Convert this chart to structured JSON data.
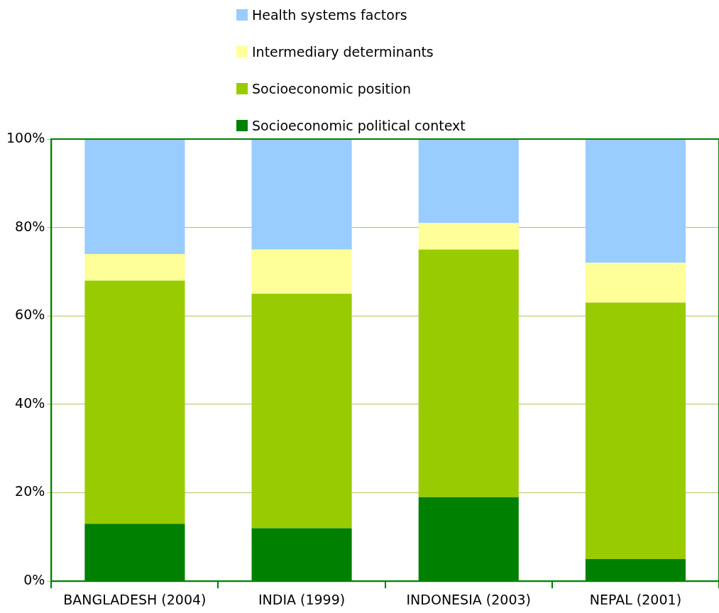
{
  "chart_data": {
    "type": "bar",
    "stacked": true,
    "categories": [
      "BANGLADESH (2004)",
      "INDIA (1999)",
      "INDONESIA (2003)",
      "NEPAL (2001)"
    ],
    "series": [
      {
        "name": "Socioeconomic political context",
        "color": "#008000",
        "values": [
          13,
          12,
          19,
          5
        ]
      },
      {
        "name": "Socioeconomic position",
        "color": "#99cc00",
        "values": [
          55,
          53,
          56,
          58
        ]
      },
      {
        "name": "Intermediary determinants",
        "color": "#ffff99",
        "values": [
          6,
          10,
          6,
          9
        ]
      },
      {
        "name": "Health systems factors",
        "color": "#99ccff",
        "values": [
          26,
          25,
          19,
          28
        ]
      }
    ],
    "ylim": [
      0,
      100
    ],
    "yticks": [
      {
        "value": 0,
        "label": "0%"
      },
      {
        "value": 20,
        "label": "20%"
      },
      {
        "value": 40,
        "label": "40%"
      },
      {
        "value": 60,
        "label": "60%"
      },
      {
        "value": 80,
        "label": "80%"
      },
      {
        "value": 100,
        "label": "100%"
      }
    ],
    "grid": "y",
    "legend": "top"
  }
}
